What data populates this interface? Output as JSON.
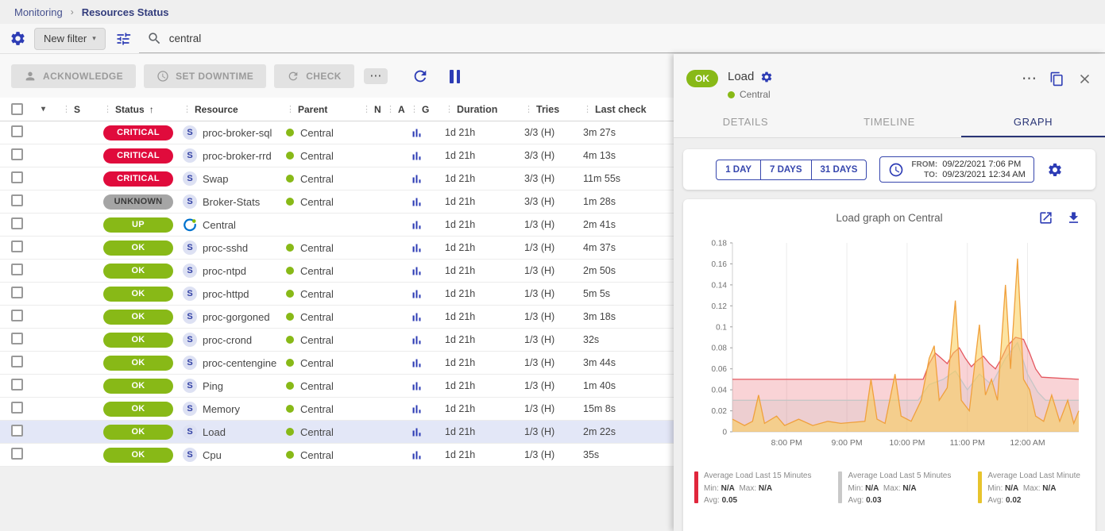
{
  "colors": {
    "accent": "#2d3cb5",
    "navy": "#2a3576",
    "selected_row": "#e3e7f7",
    "status": {
      "CRITICAL": "#e00b3c",
      "UNKNOWN": "#a5a5a5",
      "UP": "#88b917",
      "OK": "#88b917"
    },
    "status_text": {
      "CRITICAL": "#ffffff",
      "UNKNOWN": "#3a3a3a",
      "UP": "#ffffff",
      "OK": "#ffffff"
    },
    "parent_ok_dot": "#88b917"
  },
  "icons": {
    "caret_down": "▾",
    "more": "⋯",
    "sort_asc": "↑",
    "column_drag": "⋮"
  },
  "breadcrumb": {
    "section": "Monitoring",
    "separator": "›",
    "page": "Resources Status"
  },
  "filter_bar": {
    "new_filter_label": "New filter",
    "search_value": "central"
  },
  "toolbar": {
    "acknowledge_label": "ACKNOWLEDGE",
    "set_downtime_label": "SET DOWNTIME",
    "check_label": "CHECK"
  },
  "table": {
    "header": {
      "s": "S",
      "status": "Status",
      "resource": "Resource",
      "parent": "Parent",
      "n": "N",
      "a": "A",
      "g": "G",
      "duration": "Duration",
      "tries": "Tries",
      "last_check": "Last check"
    },
    "rows": [
      {
        "status": "CRITICAL",
        "type": "service",
        "resource": "proc-broker-sql",
        "parent": "Central",
        "duration": "1d 21h",
        "tries": "3/3 (H)",
        "last_check": "3m 27s",
        "selected": false
      },
      {
        "status": "CRITICAL",
        "type": "service",
        "resource": "proc-broker-rrd",
        "parent": "Central",
        "duration": "1d 21h",
        "tries": "3/3 (H)",
        "last_check": "4m 13s",
        "selected": false
      },
      {
        "status": "CRITICAL",
        "type": "service",
        "resource": "Swap",
        "parent": "Central",
        "duration": "1d 21h",
        "tries": "3/3 (H)",
        "last_check": "11m 55s",
        "selected": false
      },
      {
        "status": "UNKNOWN",
        "type": "service",
        "resource": "Broker-Stats",
        "parent": "Central",
        "duration": "1d 21h",
        "tries": "3/3 (H)",
        "last_check": "1m 28s",
        "selected": false
      },
      {
        "status": "UP",
        "type": "host",
        "resource": "Central",
        "parent": null,
        "duration": "1d 21h",
        "tries": "1/3 (H)",
        "last_check": "2m 41s",
        "selected": false
      },
      {
        "status": "OK",
        "type": "service",
        "resource": "proc-sshd",
        "parent": "Central",
        "duration": "1d 21h",
        "tries": "1/3 (H)",
        "last_check": "4m 37s",
        "selected": false
      },
      {
        "status": "OK",
        "type": "service",
        "resource": "proc-ntpd",
        "parent": "Central",
        "duration": "1d 21h",
        "tries": "1/3 (H)",
        "last_check": "2m 50s",
        "selected": false
      },
      {
        "status": "OK",
        "type": "service",
        "resource": "proc-httpd",
        "parent": "Central",
        "duration": "1d 21h",
        "tries": "1/3 (H)",
        "last_check": "5m 5s",
        "selected": false
      },
      {
        "status": "OK",
        "type": "service",
        "resource": "proc-gorgoned",
        "parent": "Central",
        "duration": "1d 21h",
        "tries": "1/3 (H)",
        "last_check": "3m 18s",
        "selected": false
      },
      {
        "status": "OK",
        "type": "service",
        "resource": "proc-crond",
        "parent": "Central",
        "duration": "1d 21h",
        "tries": "1/3 (H)",
        "last_check": "32s",
        "selected": false
      },
      {
        "status": "OK",
        "type": "service",
        "resource": "proc-centengine",
        "parent": "Central",
        "duration": "1d 21h",
        "tries": "1/3 (H)",
        "last_check": "3m 44s",
        "selected": false
      },
      {
        "status": "OK",
        "type": "service",
        "resource": "Ping",
        "parent": "Central",
        "duration": "1d 21h",
        "tries": "1/3 (H)",
        "last_check": "1m 40s",
        "selected": false
      },
      {
        "status": "OK",
        "type": "service",
        "resource": "Memory",
        "parent": "Central",
        "duration": "1d 21h",
        "tries": "1/3 (H)",
        "last_check": "15m 8s",
        "selected": false
      },
      {
        "status": "OK",
        "type": "service",
        "resource": "Load",
        "parent": "Central",
        "duration": "1d 21h",
        "tries": "1/3 (H)",
        "last_check": "2m 22s",
        "selected": true
      },
      {
        "status": "OK",
        "type": "service",
        "resource": "Cpu",
        "parent": "Central",
        "duration": "1d 21h",
        "tries": "1/3 (H)",
        "last_check": "35s",
        "selected": false
      }
    ]
  },
  "panel": {
    "status": "OK",
    "title": "Load",
    "parent": "Central",
    "tabs": [
      {
        "label": "DETAILS",
        "active": false
      },
      {
        "label": "TIMELINE",
        "active": false
      },
      {
        "label": "GRAPH",
        "active": true
      }
    ],
    "period_buttons": [
      "1 DAY",
      "7 DAYS",
      "31 DAYS"
    ],
    "from_label": "FROM:",
    "from_value": "09/22/2021 7:06 PM",
    "to_label": "TO:",
    "to_value": "09/23/2021 12:34 AM",
    "graph_title": "Load graph on Central"
  },
  "chart_data": {
    "type": "area",
    "title": "Load graph on Central",
    "x_unit": "minutes since 7:06 PM (09/22/2021)",
    "xlim": [
      0,
      345
    ],
    "ylim": [
      0,
      0.18
    ],
    "grid": "vertical",
    "legend_position": "bottom",
    "legend_labels": {
      "min": "Min:",
      "max": "Max:",
      "avg": "Avg:"
    },
    "x_ticks": [
      {
        "x": 54,
        "label": "8:00 PM"
      },
      {
        "x": 114,
        "label": "9:00 PM"
      },
      {
        "x": 174,
        "label": "10:00 PM"
      },
      {
        "x": 234,
        "label": "11:00 PM"
      },
      {
        "x": 294,
        "label": "12:00 AM"
      }
    ],
    "y_ticks": [
      0,
      0.02,
      0.04,
      0.06,
      0.08,
      0.1,
      0.12,
      0.14,
      0.16,
      0.18
    ],
    "series": [
      {
        "name": "Average Load Last 15 Minutes",
        "color": "#e4575f",
        "fill": "rgba(230,80,90,0.25)",
        "legend_color": "#e0263c",
        "min": "N/A",
        "max": "N/A",
        "avg": "0.05",
        "points": [
          [
            0,
            0.05
          ],
          [
            190,
            0.05
          ],
          [
            196,
            0.065
          ],
          [
            202,
            0.075
          ],
          [
            208,
            0.07
          ],
          [
            214,
            0.065
          ],
          [
            220,
            0.075
          ],
          [
            226,
            0.08
          ],
          [
            232,
            0.07
          ],
          [
            238,
            0.062
          ],
          [
            244,
            0.068
          ],
          [
            250,
            0.072
          ],
          [
            256,
            0.065
          ],
          [
            262,
            0.06
          ],
          [
            268,
            0.07
          ],
          [
            274,
            0.082
          ],
          [
            282,
            0.09
          ],
          [
            290,
            0.088
          ],
          [
            296,
            0.075
          ],
          [
            302,
            0.06
          ],
          [
            308,
            0.052
          ],
          [
            345,
            0.05
          ]
        ]
      },
      {
        "name": "Average Load Last 5 Minutes",
        "color": "#c6c6c6",
        "fill": "rgba(185,185,185,0.18)",
        "legend_color": "#c9c9c9",
        "min": "N/A",
        "max": "N/A",
        "avg": "0.03",
        "points": [
          [
            0,
            0.03
          ],
          [
            185,
            0.03
          ],
          [
            196,
            0.045
          ],
          [
            210,
            0.05
          ],
          [
            222,
            0.058
          ],
          [
            234,
            0.04
          ],
          [
            246,
            0.055
          ],
          [
            258,
            0.045
          ],
          [
            272,
            0.07
          ],
          [
            284,
            0.085
          ],
          [
            294,
            0.055
          ],
          [
            304,
            0.038
          ],
          [
            312,
            0.03
          ],
          [
            345,
            0.03
          ]
        ]
      },
      {
        "name": "Average Load Last Minute",
        "color": "#f0a03c",
        "fill": "rgba(250,205,85,0.55)",
        "legend_color": "#e7c42d",
        "min": "N/A",
        "max": "N/A",
        "avg": "0.02",
        "points": [
          [
            0,
            0.012
          ],
          [
            12,
            0.006
          ],
          [
            20,
            0.01
          ],
          [
            26,
            0.035
          ],
          [
            32,
            0.008
          ],
          [
            44,
            0.015
          ],
          [
            52,
            0.006
          ],
          [
            66,
            0.012
          ],
          [
            80,
            0.006
          ],
          [
            95,
            0.01
          ],
          [
            108,
            0.008
          ],
          [
            132,
            0.01
          ],
          [
            138,
            0.05
          ],
          [
            144,
            0.012
          ],
          [
            152,
            0.008
          ],
          [
            162,
            0.055
          ],
          [
            168,
            0.015
          ],
          [
            178,
            0.01
          ],
          [
            188,
            0.03
          ],
          [
            196,
            0.07
          ],
          [
            201,
            0.082
          ],
          [
            206,
            0.03
          ],
          [
            214,
            0.042
          ],
          [
            222,
            0.125
          ],
          [
            228,
            0.03
          ],
          [
            236,
            0.02
          ],
          [
            246,
            0.102
          ],
          [
            252,
            0.035
          ],
          [
            258,
            0.05
          ],
          [
            264,
            0.03
          ],
          [
            272,
            0.14
          ],
          [
            277,
            0.06
          ],
          [
            284,
            0.165
          ],
          [
            290,
            0.05
          ],
          [
            296,
            0.04
          ],
          [
            302,
            0.015
          ],
          [
            310,
            0.01
          ],
          [
            318,
            0.035
          ],
          [
            326,
            0.01
          ],
          [
            334,
            0.03
          ],
          [
            340,
            0.008
          ],
          [
            345,
            0.02
          ]
        ]
      }
    ]
  }
}
